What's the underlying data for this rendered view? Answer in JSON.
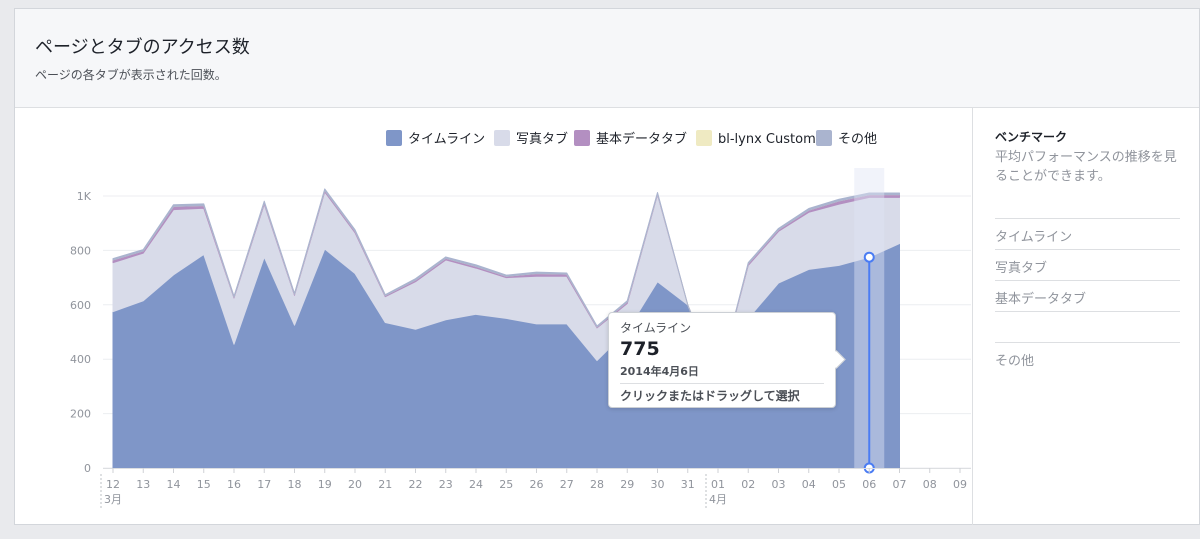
{
  "header": {
    "title": "ページとタブのアクセス数",
    "subtitle": "ページの各タブが表示された回数。"
  },
  "benchmark": {
    "title": "ベンチマーク",
    "description": "平均パフォーマンスの推移を見ることができます。",
    "items": [
      "タイムライン",
      "写真タブ",
      "基本データタブ",
      "",
      "その他"
    ]
  },
  "tooltip": {
    "series": "タイムライン",
    "value": "775",
    "date": "2014年4月6日",
    "hint": "クリックまたはドラッグして選択"
  },
  "chart_data": {
    "type": "area",
    "stacked": true,
    "categories": [
      "12",
      "13",
      "14",
      "15",
      "16",
      "17",
      "18",
      "19",
      "20",
      "21",
      "22",
      "23",
      "24",
      "25",
      "26",
      "27",
      "28",
      "29",
      "30",
      "31",
      "01",
      "02",
      "03",
      "04",
      "05",
      "06",
      "07",
      "08",
      "09"
    ],
    "month_labels": [
      {
        "label": "3月",
        "at": "12"
      },
      {
        "label": "4月",
        "at": "01"
      }
    ],
    "yticks": [
      "0",
      "200",
      "400",
      "600",
      "800",
      "1K"
    ],
    "ylim": [
      0,
      1000
    ],
    "legend": [
      {
        "name": "タイムライン",
        "color": "#7f96c8"
      },
      {
        "name": "写真タブ",
        "color": "#d8dbe9"
      },
      {
        "name": "基本データタブ",
        "color": "#b38fc1"
      },
      {
        "name": "bl-lynx Custom",
        "color": "#efeac2"
      },
      {
        "name": "その他",
        "color": "#aab4cf"
      }
    ],
    "series": [
      {
        "name": "タイムライン",
        "color": "#7f96c8",
        "values": [
          575,
          615,
          710,
          785,
          455,
          775,
          525,
          805,
          715,
          535,
          510,
          545,
          565,
          550,
          530,
          530,
          395,
          505,
          685,
          600,
          320,
          550,
          680,
          730,
          745,
          775,
          825,
          null,
          null
        ]
      },
      {
        "name": "写真タブ",
        "color": "#d8dbe9",
        "values": [
          180,
          175,
          240,
          170,
          170,
          195,
          110,
          210,
          150,
          95,
          175,
          220,
          170,
          150,
          175,
          175,
          120,
          100,
          320,
          0,
          0,
          195,
          190,
          210,
          225,
          220,
          170,
          null,
          null
        ]
      },
      {
        "name": "基本データタブ",
        "color": "#b38fc1",
        "values": [
          10,
          8,
          12,
          10,
          4,
          6,
          4,
          6,
          6,
          4,
          6,
          6,
          6,
          5,
          10,
          8,
          4,
          6,
          4,
          0,
          0,
          6,
          6,
          8,
          12,
          10,
          10,
          null,
          null
        ]
      },
      {
        "name": "bl-lynx Custom",
        "color": "#efeac2",
        "values": [
          0,
          0,
          0,
          0,
          0,
          0,
          0,
          0,
          0,
          0,
          0,
          0,
          0,
          0,
          0,
          0,
          0,
          0,
          0,
          0,
          0,
          0,
          0,
          0,
          0,
          0,
          0,
          null,
          null
        ]
      },
      {
        "name": "その他",
        "color": "#aab4cf",
        "values": [
          5,
          5,
          6,
          6,
          3,
          5,
          3,
          5,
          5,
          3,
          5,
          5,
          6,
          4,
          5,
          4,
          3,
          4,
          4,
          0,
          0,
          4,
          5,
          6,
          6,
          6,
          6,
          null,
          null
        ]
      }
    ],
    "highlight": {
      "category": "06",
      "series": "タイムライン",
      "value": 775,
      "date": "2014年4月6日"
    }
  }
}
